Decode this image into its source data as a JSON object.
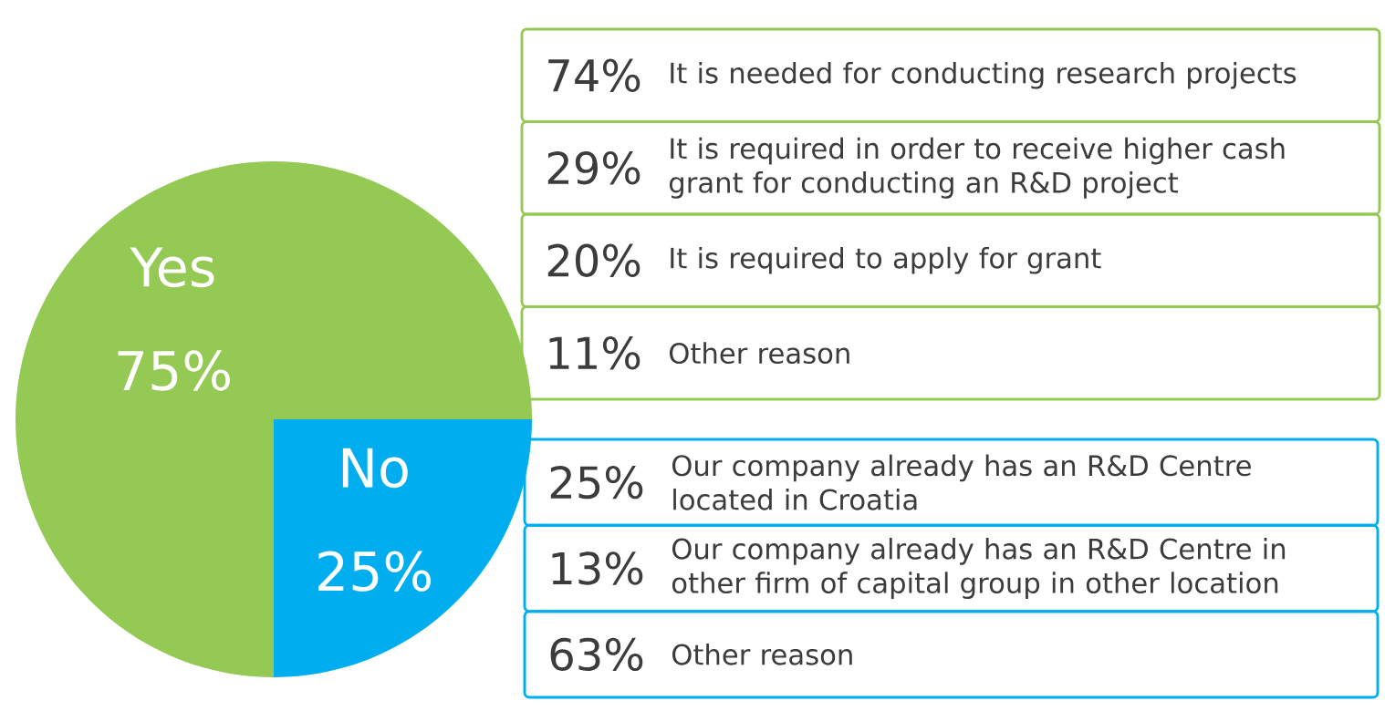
{
  "chart_data": [
    {
      "type": "pie",
      "categories": [
        "Yes",
        "No"
      ],
      "values": [
        75,
        25
      ],
      "value_labels": [
        "75%",
        "25%"
      ],
      "colors": [
        "#94c954",
        "#00aeef"
      ]
    },
    {
      "type": "other",
      "color": "#94c954",
      "categories": [
        "It is needed for conducting research projects",
        "It is required in order to receive higher cash grant for conducting an R&D project",
        "It is required to apply for grant",
        "Other reason"
      ],
      "value_labels": [
        "74%",
        "29%",
        "20%",
        "11%"
      ]
    },
    {
      "type": "other",
      "color": "#00aeef",
      "categories": [
        "Our company already has an R&D Centre located in Croatia",
        "Our company already has an R&D Centre in other firm of capital group in other location",
        "Other reason"
      ],
      "value_labels": [
        "25%",
        "13%",
        "63%"
      ]
    }
  ]
}
